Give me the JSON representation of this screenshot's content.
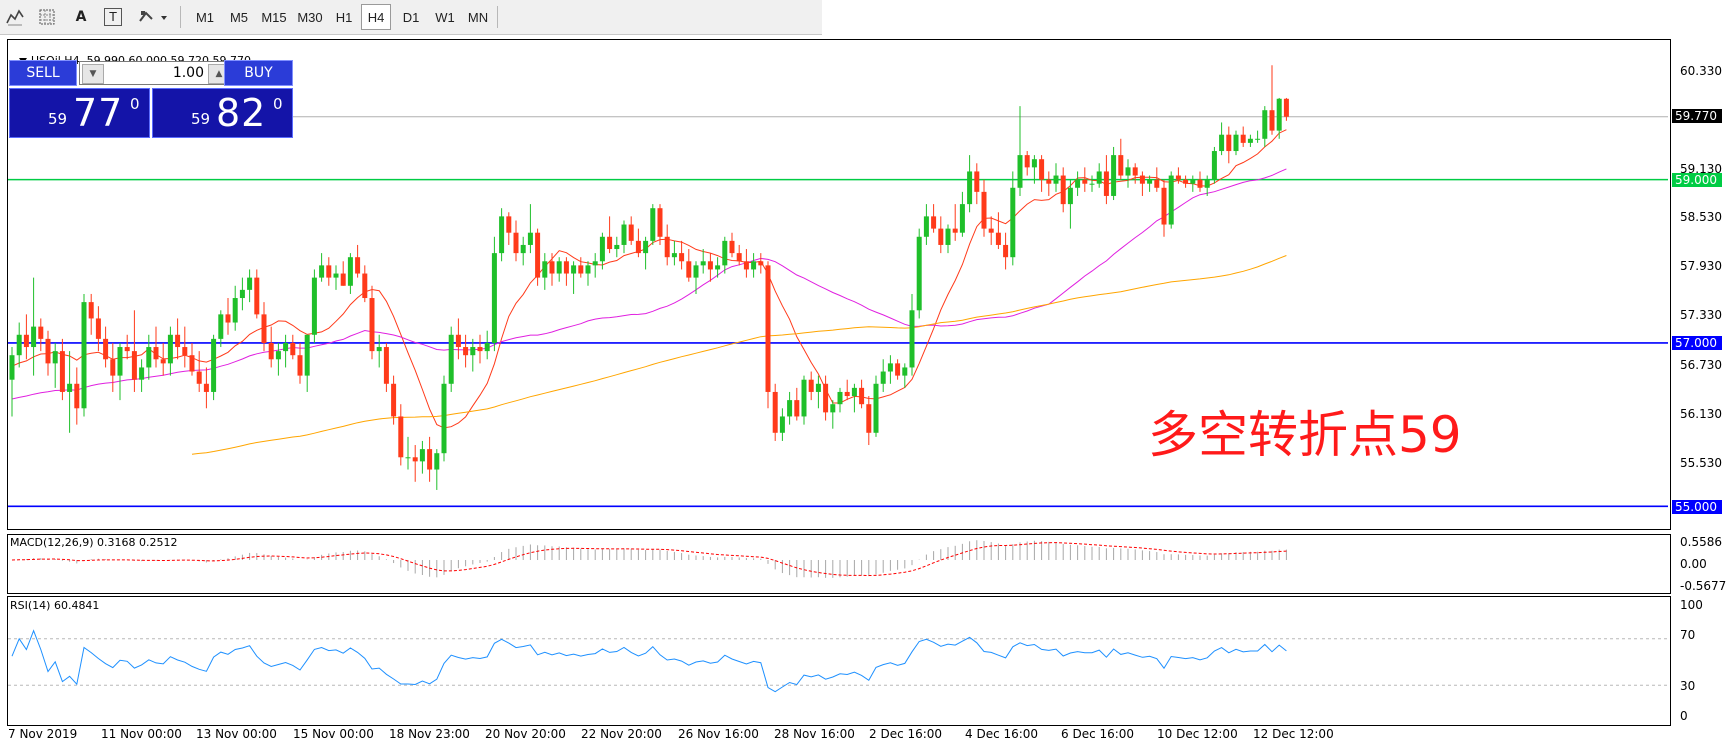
{
  "toolbar": {
    "tools": [
      {
        "icon": "indicators-icon",
        "label": ""
      },
      {
        "icon": "grid-icon",
        "label": ""
      },
      {
        "icon": "text-tool-icon",
        "label": "A"
      },
      {
        "icon": "text-label-icon",
        "label": "T"
      },
      {
        "icon": "shapes-dropdown-icon",
        "label": ""
      }
    ],
    "timeframes": [
      "M1",
      "M5",
      "M15",
      "M30",
      "H1",
      "H4",
      "D1",
      "W1",
      "MN"
    ],
    "active_timeframe": "H4"
  },
  "chart": {
    "symbol_line": "USOil,H4  59.990 60.000 59.720 59.770",
    "annotation": "多空转折点59",
    "annotation_color": "#ff1a1a",
    "price_axis": [
      "60.330",
      "59.130",
      "58.530",
      "57.930",
      "57.330",
      "56.730",
      "56.130",
      "55.530"
    ],
    "current_price_tag": "59.770",
    "hlines": [
      {
        "label": "59.000",
        "color": "#00cc44"
      },
      {
        "label": "57.000",
        "color": "#0000ff"
      },
      {
        "label": "55.000",
        "color": "#0000ff"
      }
    ],
    "bull_color": "#1fbf2a",
    "bear_color": "#ff3a1a"
  },
  "one_click": {
    "sell_label": "SELL",
    "buy_label": "BUY",
    "volume": "1.00",
    "bid": {
      "prefix": "59",
      "big": "77",
      "sup": "0"
    },
    "ask": {
      "prefix": "59",
      "big": "82",
      "sup": "0"
    }
  },
  "macd": {
    "label": "MACD(12,26,9) 0.3168 0.2512",
    "axis": [
      "0.5586",
      "0.00",
      "-0.5677"
    ]
  },
  "rsi": {
    "label": "RSI(14) 60.4841",
    "axis": [
      "100",
      "70",
      "30",
      "0"
    ]
  },
  "time_axis": [
    "7 Nov 2019",
    "11 Nov 00:00",
    "13 Nov 00:00",
    "15 Nov 00:00",
    "18 Nov 23:00",
    "20 Nov 20:00",
    "22 Nov 20:00",
    "26 Nov 16:00",
    "28 Nov 16:00",
    "2 Dec 16:00",
    "4 Dec 16:00",
    "6 Dec 16:00",
    "10 Dec 12:00",
    "12 Dec 12:00"
  ],
  "chart_data": {
    "type": "candlestick",
    "symbol": "USOil",
    "timeframe": "H4",
    "ylim": [
      55.0,
      60.6
    ],
    "horizontal_levels": [
      59.0,
      57.0,
      55.0
    ],
    "current_price": 59.77,
    "ohlc": [
      [
        56.55,
        56.95,
        56.1,
        56.85
      ],
      [
        56.85,
        57.25,
        56.7,
        57.1
      ],
      [
        57.1,
        57.35,
        56.8,
        56.95
      ],
      [
        56.95,
        57.8,
        56.6,
        57.2
      ],
      [
        57.2,
        57.3,
        56.9,
        57.05
      ],
      [
        57.05,
        57.15,
        56.6,
        56.75
      ],
      [
        56.75,
        57.0,
        56.45,
        56.9
      ],
      [
        56.9,
        57.05,
        56.3,
        56.4
      ],
      [
        56.4,
        56.9,
        55.9,
        56.5
      ],
      [
        56.5,
        56.7,
        56.0,
        56.2
      ],
      [
        56.2,
        57.6,
        56.1,
        57.5
      ],
      [
        57.5,
        57.6,
        57.1,
        57.3
      ],
      [
        57.3,
        57.45,
        56.9,
        57.05
      ],
      [
        57.05,
        57.2,
        56.7,
        56.8
      ],
      [
        56.8,
        57.0,
        56.4,
        56.6
      ],
      [
        56.6,
        57.0,
        56.3,
        56.95
      ],
      [
        56.95,
        57.1,
        56.8,
        56.9
      ],
      [
        56.9,
        57.4,
        56.4,
        56.55
      ],
      [
        56.55,
        56.8,
        56.4,
        56.7
      ],
      [
        56.7,
        57.1,
        56.55,
        56.95
      ],
      [
        56.95,
        57.2,
        56.7,
        56.8
      ],
      [
        56.8,
        57.0,
        56.6,
        56.75
      ],
      [
        56.75,
        57.2,
        56.6,
        57.1
      ],
      [
        57.1,
        57.3,
        56.8,
        56.95
      ],
      [
        56.95,
        57.2,
        56.7,
        56.85
      ],
      [
        56.85,
        57.0,
        56.6,
        56.65
      ],
      [
        56.65,
        56.9,
        56.4,
        56.5
      ],
      [
        56.5,
        56.7,
        56.2,
        56.4
      ],
      [
        56.4,
        57.1,
        56.3,
        57.05
      ],
      [
        57.05,
        57.4,
        56.95,
        57.35
      ],
      [
        57.35,
        57.55,
        57.1,
        57.25
      ],
      [
        57.25,
        57.7,
        57.15,
        57.55
      ],
      [
        57.55,
        57.8,
        57.4,
        57.65
      ],
      [
        57.65,
        57.9,
        57.5,
        57.8
      ],
      [
        57.8,
        57.9,
        57.3,
        57.35
      ],
      [
        57.35,
        57.5,
        56.9,
        57.0
      ],
      [
        57.0,
        57.2,
        56.7,
        56.8
      ],
      [
        56.8,
        57.0,
        56.6,
        56.9
      ],
      [
        56.9,
        57.1,
        56.7,
        57.0
      ],
      [
        57.0,
        57.1,
        56.8,
        56.85
      ],
      [
        56.85,
        57.0,
        56.5,
        56.6
      ],
      [
        56.6,
        57.1,
        56.4,
        57.1
      ],
      [
        57.1,
        57.9,
        57.0,
        57.8
      ],
      [
        57.8,
        58.1,
        57.75,
        57.95
      ],
      [
        57.95,
        58.05,
        57.7,
        57.8
      ],
      [
        57.8,
        57.95,
        57.65,
        57.85
      ],
      [
        57.85,
        58.0,
        57.7,
        57.7
      ],
      [
        57.7,
        58.1,
        57.6,
        58.05
      ],
      [
        58.05,
        58.2,
        57.8,
        57.85
      ],
      [
        57.85,
        57.95,
        57.5,
        57.55
      ],
      [
        57.55,
        57.7,
        56.8,
        56.9
      ],
      [
        56.9,
        57.1,
        56.7,
        56.95
      ],
      [
        56.95,
        57.0,
        56.4,
        56.5
      ],
      [
        56.5,
        56.6,
        56.0,
        56.1
      ],
      [
        56.1,
        56.25,
        55.5,
        55.6
      ],
      [
        55.6,
        55.85,
        55.45,
        55.6
      ],
      [
        55.6,
        55.75,
        55.3,
        55.55
      ],
      [
        55.55,
        55.8,
        55.4,
        55.7
      ],
      [
        55.7,
        55.85,
        55.3,
        55.45
      ],
      [
        55.45,
        55.7,
        55.2,
        55.65
      ],
      [
        55.65,
        56.6,
        55.55,
        56.5
      ],
      [
        56.5,
        57.2,
        56.4,
        57.1
      ],
      [
        57.1,
        57.3,
        56.8,
        56.95
      ],
      [
        56.95,
        57.1,
        56.7,
        56.85
      ],
      [
        56.85,
        57.05,
        56.65,
        56.95
      ],
      [
        56.95,
        57.1,
        56.75,
        56.9
      ],
      [
        56.9,
        57.15,
        56.8,
        57.0
      ],
      [
        57.0,
        58.3,
        56.9,
        58.1
      ],
      [
        58.1,
        58.65,
        58.0,
        58.55
      ],
      [
        58.55,
        58.6,
        58.2,
        58.35
      ],
      [
        58.35,
        58.5,
        58.0,
        58.1
      ],
      [
        58.1,
        58.3,
        57.95,
        58.2
      ],
      [
        58.2,
        58.7,
        58.1,
        58.35
      ],
      [
        58.35,
        58.4,
        57.7,
        57.8
      ],
      [
        57.8,
        58.1,
        57.65,
        58.0
      ],
      [
        58.0,
        58.1,
        57.7,
        57.85
      ],
      [
        57.85,
        58.05,
        57.75,
        58.0
      ],
      [
        58.0,
        58.05,
        57.7,
        57.85
      ],
      [
        57.85,
        58.0,
        57.6,
        57.95
      ],
      [
        57.95,
        58.05,
        57.8,
        57.85
      ],
      [
        57.85,
        58.0,
        57.7,
        57.95
      ],
      [
        57.95,
        58.1,
        57.8,
        58.0
      ],
      [
        58.0,
        58.35,
        57.9,
        58.3
      ],
      [
        58.3,
        58.55,
        58.1,
        58.15
      ],
      [
        58.15,
        58.3,
        58.05,
        58.2
      ],
      [
        58.2,
        58.5,
        58.1,
        58.45
      ],
      [
        58.45,
        58.55,
        58.2,
        58.25
      ],
      [
        58.25,
        58.4,
        58.05,
        58.1
      ],
      [
        58.1,
        58.3,
        57.9,
        58.25
      ],
      [
        58.25,
        58.7,
        58.2,
        58.65
      ],
      [
        58.65,
        58.7,
        58.2,
        58.3
      ],
      [
        58.3,
        58.45,
        57.95,
        58.05
      ],
      [
        58.05,
        58.25,
        57.95,
        58.1
      ],
      [
        58.1,
        58.25,
        57.9,
        58.0
      ],
      [
        58.0,
        58.15,
        57.75,
        57.8
      ],
      [
        57.8,
        58.0,
        57.6,
        57.95
      ],
      [
        57.95,
        58.15,
        57.85,
        58.0
      ],
      [
        58.0,
        58.1,
        57.75,
        57.9
      ],
      [
        57.9,
        58.05,
        57.8,
        57.95
      ],
      [
        57.95,
        58.3,
        57.85,
        58.25
      ],
      [
        58.25,
        58.35,
        58.05,
        58.1
      ],
      [
        58.1,
        58.2,
        57.95,
        58.0
      ],
      [
        58.0,
        58.15,
        57.8,
        57.9
      ],
      [
        57.9,
        58.1,
        57.8,
        58.0
      ],
      [
        58.0,
        58.1,
        57.85,
        57.95
      ],
      [
        57.95,
        58.0,
        56.2,
        56.4
      ],
      [
        56.4,
        56.5,
        55.8,
        55.9
      ],
      [
        55.9,
        56.2,
        55.8,
        56.1
      ],
      [
        56.1,
        56.4,
        56.0,
        56.3
      ],
      [
        56.3,
        56.45,
        56.05,
        56.1
      ],
      [
        56.1,
        56.6,
        56.0,
        56.55
      ],
      [
        56.55,
        56.65,
        56.3,
        56.4
      ],
      [
        56.4,
        56.6,
        56.2,
        56.5
      ],
      [
        56.5,
        56.6,
        56.05,
        56.15
      ],
      [
        56.15,
        56.3,
        55.95,
        56.25
      ],
      [
        56.25,
        56.45,
        56.15,
        56.4
      ],
      [
        56.4,
        56.55,
        56.3,
        56.35
      ],
      [
        56.35,
        56.5,
        56.15,
        56.45
      ],
      [
        56.45,
        56.55,
        56.2,
        56.25
      ],
      [
        56.25,
        56.35,
        55.75,
        55.9
      ],
      [
        55.9,
        56.6,
        55.85,
        56.5
      ],
      [
        56.5,
        56.8,
        56.4,
        56.65
      ],
      [
        56.65,
        56.85,
        56.5,
        56.75
      ],
      [
        56.75,
        56.8,
        56.55,
        56.6
      ],
      [
        56.6,
        56.75,
        56.45,
        56.7
      ],
      [
        56.7,
        57.6,
        56.6,
        57.4
      ],
      [
        57.4,
        58.4,
        57.3,
        58.3
      ],
      [
        58.3,
        58.7,
        58.2,
        58.55
      ],
      [
        58.55,
        58.7,
        58.35,
        58.4
      ],
      [
        58.4,
        58.55,
        58.1,
        58.2
      ],
      [
        58.2,
        58.45,
        58.1,
        58.4
      ],
      [
        58.4,
        58.7,
        58.25,
        58.35
      ],
      [
        58.35,
        58.85,
        58.3,
        58.7
      ],
      [
        58.7,
        59.3,
        58.6,
        59.1
      ],
      [
        59.1,
        59.2,
        58.7,
        58.85
      ],
      [
        58.85,
        59.0,
        58.3,
        58.4
      ],
      [
        58.4,
        58.55,
        58.2,
        58.35
      ],
      [
        58.35,
        58.6,
        58.15,
        58.2
      ],
      [
        58.2,
        58.35,
        57.9,
        58.05
      ],
      [
        58.05,
        59.1,
        57.95,
        58.9
      ],
      [
        58.9,
        59.9,
        58.8,
        59.3
      ],
      [
        59.3,
        59.35,
        59.05,
        59.15
      ],
      [
        59.15,
        59.3,
        58.95,
        59.25
      ],
      [
        59.25,
        59.3,
        58.85,
        59.0
      ],
      [
        59.0,
        59.1,
        58.8,
        58.95
      ],
      [
        58.95,
        59.2,
        58.85,
        59.05
      ],
      [
        59.05,
        59.15,
        58.6,
        58.7
      ],
      [
        58.7,
        59.0,
        58.4,
        58.9
      ],
      [
        58.9,
        59.1,
        58.8,
        59.0
      ],
      [
        59.0,
        59.15,
        58.85,
        58.95
      ],
      [
        58.95,
        59.05,
        58.85,
        58.95
      ],
      [
        58.95,
        59.2,
        58.9,
        59.1
      ],
      [
        59.1,
        59.3,
        58.7,
        58.8
      ],
      [
        58.8,
        59.4,
        58.75,
        59.3
      ],
      [
        59.3,
        59.5,
        59.0,
        59.05
      ],
      [
        59.05,
        59.25,
        58.9,
        59.15
      ],
      [
        59.15,
        59.2,
        58.95,
        59.05
      ],
      [
        59.05,
        59.1,
        58.8,
        58.95
      ],
      [
        58.95,
        59.05,
        58.85,
        59.0
      ],
      [
        59.0,
        59.15,
        58.85,
        58.9
      ],
      [
        58.9,
        59.0,
        58.3,
        58.45
      ],
      [
        58.45,
        59.1,
        58.4,
        59.05
      ],
      [
        59.05,
        59.15,
        58.95,
        59.0
      ],
      [
        59.0,
        59.05,
        58.9,
        58.95
      ],
      [
        58.95,
        59.05,
        58.85,
        59.0
      ],
      [
        59.0,
        59.1,
        58.85,
        58.9
      ],
      [
        58.9,
        59.05,
        58.8,
        59.0
      ],
      [
        59.0,
        59.4,
        58.95,
        59.35
      ],
      [
        59.35,
        59.7,
        59.3,
        59.55
      ],
      [
        59.55,
        59.65,
        59.2,
        59.35
      ],
      [
        59.35,
        59.6,
        59.3,
        59.55
      ],
      [
        59.55,
        59.65,
        59.4,
        59.45
      ],
      [
        59.45,
        59.55,
        59.4,
        59.5
      ],
      [
        59.5,
        59.6,
        59.45,
        59.5
      ],
      [
        59.5,
        59.9,
        59.4,
        59.85
      ],
      [
        59.85,
        60.4,
        59.55,
        59.6
      ],
      [
        59.6,
        60.0,
        59.5,
        59.99
      ],
      [
        59.99,
        60.0,
        59.72,
        59.77
      ]
    ]
  }
}
